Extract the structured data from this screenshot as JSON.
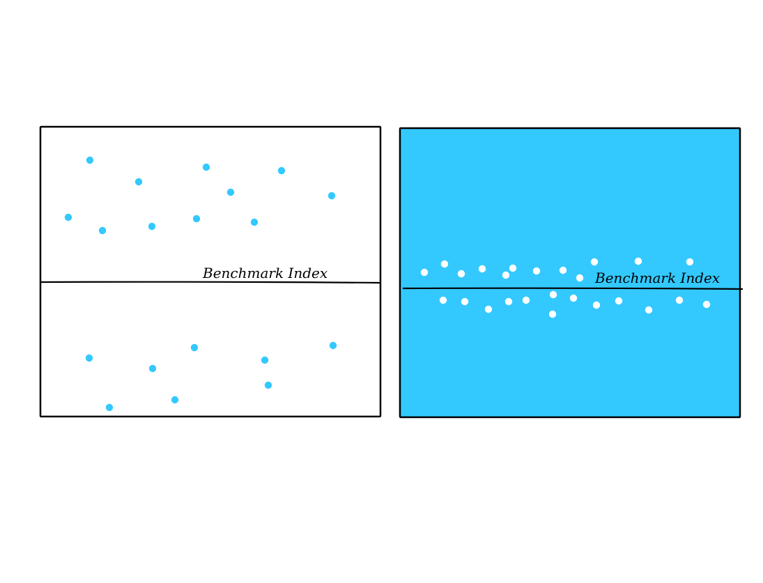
{
  "colors": {
    "background": "#ffffff",
    "outline": "#000000",
    "accent": "#33c9ff",
    "dot_on_accent": "#ffffff"
  },
  "panels": {
    "left": {
      "benchmark_label": "Benchmark Index",
      "fill": "#ffffff",
      "dot_color": "#33c9ff",
      "description": "widely scattered returns around benchmark"
    },
    "right": {
      "benchmark_label": "Benchmark Index",
      "fill": "#33c9ff",
      "dot_color": "#ffffff",
      "description": "tightly clustered returns around benchmark"
    }
  }
}
